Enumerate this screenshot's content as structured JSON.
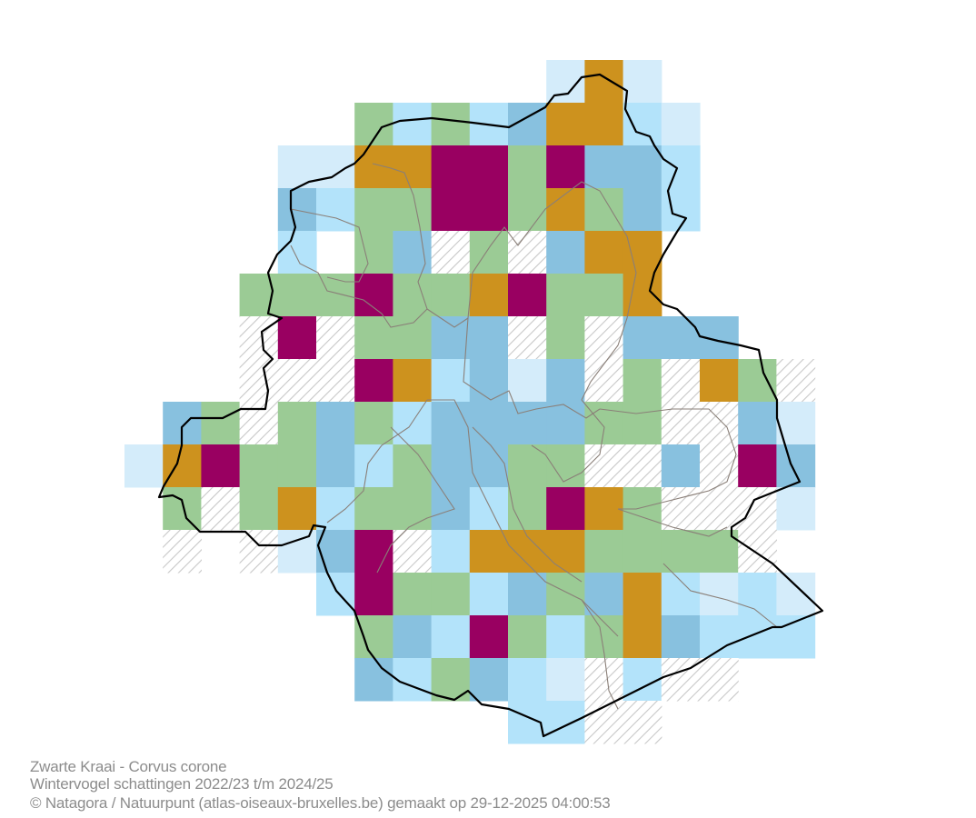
{
  "legend_colors": {
    "V": "#d4ecfa",
    "L": "#b3e3fa",
    "M": "#88c1df",
    "G": "#9bcb95",
    "O": "#cd921e",
    "P": "#990061",
    "H": "hatch"
  },
  "grid": [
    "...........VOV.....",
    "......GLGLMOOLV....",
    "....VVOOPPGPMML....",
    "....MLGGPPGOGML....",
    "....L.GMHGHMOO.....",
    "...GGGPGGOPGGO.....",
    "...HPHGGMMHGHMMM...",
    "...HHHPOLMVMHGHOGH.",
    ".MGHGMGLMMMMGGHHMV.",
    "VOPGGMLGMMGGHHMHPM.",
    ".GHGOLGGMLGPOGHHHV.",
    ".H.HVMPHLOOOGGGGH..",
    ".....LPGGLMGMOLVLV.",
    "......GMLPGLGOMLLL.",
    "......MLGMLVHLHH...",
    "..........LLHH....."
  ],
  "captions": {
    "species": "Zwarte Kraai - Corvus corone",
    "subtitle": "Wintervogel schattingen 2022/23 t/m 2024/25",
    "credit": "© Natagora / Natuurpunt (atlas-oiseaux-bruxelles.be) gemaakt op 29-12-2025 04:00:53"
  }
}
